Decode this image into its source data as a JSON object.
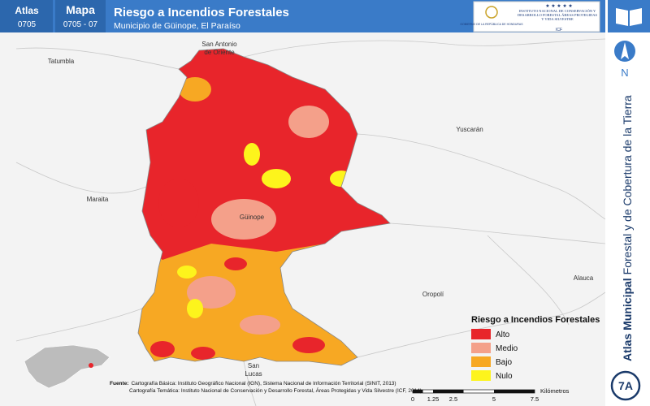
{
  "header": {
    "atlas_label": "Atlas",
    "atlas_code": "0705",
    "map_label": "Mapa",
    "map_code": "0705 - 07",
    "title": "Riesgo a Incendios Forestales",
    "subtitle": "Municipio de Güinope, El Paraíso",
    "logo_left": "GOBIERNO DE LA REPÚBLICA DE HONDURAS",
    "logo_right": "INSTITUTO NACIONAL DE CONSERVACIÓN Y DESARROLLO FORESTAL ÁREAS PROTEGIDAS Y VIDA SILVESTRE",
    "logo_acronym": "ICF"
  },
  "sidebar": {
    "north": "N",
    "series_bold": "Atlas Municipal",
    "series_rest": "Forestal y de Cobertura de la Tierra",
    "badge": "7A"
  },
  "places": [
    "Tatumbla",
    "San Antonio",
    "de Oriente",
    "Yuscarán",
    "Maraita",
    "Güinope",
    "Oropolí",
    "Alauca",
    "San",
    "Lucas"
  ],
  "legend": {
    "title": "Riesgo a Incendios Forestales",
    "items": [
      {
        "label": "Alto",
        "color": "#e8252b"
      },
      {
        "label": "Medio",
        "color": "#f4a08a"
      },
      {
        "label": "Bajo",
        "color": "#f7a823"
      },
      {
        "label": "Nulo",
        "color": "#fdf41c"
      }
    ]
  },
  "scale_bar": {
    "labels": [
      "0",
      "1.25",
      "2.5",
      "5",
      "7.5"
    ],
    "unit": "Kilómetros"
  },
  "source": {
    "label": "Fuente:",
    "line1": "Cartografía Básica: Instituto Geográfico Nacional (IGN), Sistema Nacional de Información Territorial (SINIT, 2013)",
    "line2": "Cartografía Temática: Instituto Nacional de Conservación y Desarrollo Forestal, Áreas Protegidas y Vida Silvestre (ICF, 2014)"
  }
}
